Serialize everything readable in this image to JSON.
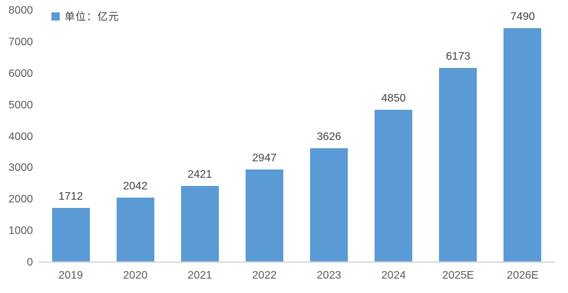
{
  "chart_data": {
    "type": "bar",
    "title": "",
    "legend": "单位：亿元",
    "legend_position": "top-left",
    "categories": [
      "2019",
      "2020",
      "2021",
      "2022",
      "2023",
      "2024",
      "2025E",
      "2026E"
    ],
    "values": [
      1712,
      2042,
      2421,
      2947,
      3626,
      4850,
      6173,
      7490
    ],
    "xlabel": "",
    "ylabel": "",
    "ylim": [
      0,
      8000
    ],
    "yticks": [
      0,
      1000,
      2000,
      3000,
      4000,
      5000,
      6000,
      7000,
      8000
    ],
    "grid": false,
    "colors": {
      "bar": "#5B9BD5",
      "axis_line": "#D9D9D9",
      "tick_label": "#595959",
      "data_label": "#404040",
      "background": "#FFFFFF"
    }
  }
}
